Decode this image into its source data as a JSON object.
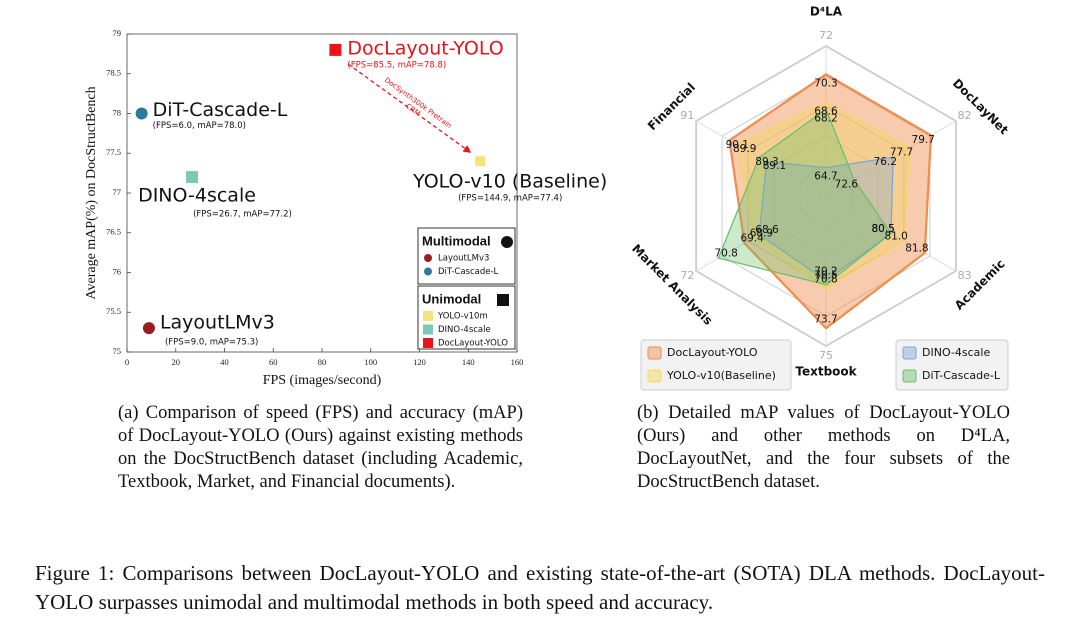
{
  "chart_data": [
    {
      "type": "scatter",
      "xlabel": "FPS (images/second)",
      "ylabel": "Average mAP(%) on DocStructBench",
      "xlim": [
        0,
        160
      ],
      "xticks": [
        0,
        20,
        40,
        60,
        80,
        100,
        120,
        140,
        160
      ],
      "ylim": [
        75,
        79
      ],
      "yticks": [
        75,
        75.5,
        76,
        76.5,
        77,
        77.5,
        78,
        78.5,
        79
      ],
      "annotation": [
        "DocSynth300k Pretrain",
        "CRM"
      ],
      "groups": [
        {
          "name": "Multimodal",
          "marker": "circle",
          "series": [
            {
              "name": "LayoutLMv3",
              "label": "LayoutLMv3",
              "note": "(FPS=9.0, mAP=75.3)",
              "color": "#9b1c1c",
              "x": [
                9.0
              ],
              "values": [
                75.3
              ]
            },
            {
              "name": "DiT-Cascade-L",
              "label": "DiT-Cascade-L",
              "note": "(FPS=6.0, mAP=78.0)",
              "color": "#2b7a9e",
              "x": [
                6.0
              ],
              "values": [
                78.0
              ]
            }
          ]
        },
        {
          "name": "Unimodal",
          "marker": "square",
          "series": [
            {
              "name": "YOLO-v10m",
              "label": "YOLO-v10 (Baseline)",
              "note": "(FPS=144.9, mAP=77.4)",
              "color": "#f6e27a",
              "x": [
                144.9
              ],
              "values": [
                77.4
              ]
            },
            {
              "name": "DINO-4scale",
              "label": "DINO-4scale",
              "note": "(FPS=26.7, mAP=77.2)",
              "color": "#7cc7b8",
              "x": [
                26.7
              ],
              "values": [
                77.2
              ]
            },
            {
              "name": "DocLayout-YOLO",
              "label": "DocLayout-YOLO",
              "note": "(FPS=85.5, mAP=78.8)",
              "color": "#e8141a",
              "x": [
                85.5
              ],
              "values": [
                78.8
              ]
            }
          ]
        }
      ]
    },
    {
      "type": "radar",
      "axes": [
        "D⁴LA",
        "DocLayNet",
        "Academic",
        "Textbook",
        "Market Analysis",
        "Financial"
      ],
      "rlim": [
        [
          63,
          72
        ],
        [
          70,
          82
        ],
        [
          78,
          83
        ],
        [
          64,
          75
        ],
        [
          65,
          72
        ],
        [
          87.5,
          91
        ]
      ],
      "series": [
        {
          "name": "DocLayout-YOLO",
          "color": "#f08c4c",
          "values": [
            70.3,
            79.7,
            81.8,
            73.7,
            69.4,
            90.1
          ],
          "value_labels": [
            "70.3",
            "79.7",
            "81.8",
            "73.7",
            "69.4",
            "90.1"
          ]
        },
        {
          "name": "YOLO-v10(Baseline)",
          "color": "#f2d85a",
          "values": [
            68.6,
            77.7,
            81.0,
            70.8,
            68.9,
            89.9
          ],
          "value_labels": [
            "68.6",
            "77.7",
            "81.0",
            "70.8",
            "68.9",
            "89.9"
          ]
        },
        {
          "name": "DINO-4scale",
          "color": "#7fa6d8",
          "values": [
            64.7,
            76.2,
            80.5,
            70.2,
            68.6,
            89.1
          ],
          "value_labels": [
            "64.7",
            "76.2",
            "80.5",
            "70.2",
            "68.6",
            "89.1"
          ]
        },
        {
          "name": "DiT-Cascade-L",
          "color": "#6cbf6e",
          "values": [
            68.2,
            72.6,
            80.5,
            70.5,
            70.8,
            89.3
          ],
          "value_labels": [
            "68.2",
            "72.6",
            "80.5",
            "70.5",
            "70.8",
            "89.3"
          ]
        }
      ]
    }
  ],
  "subcaptions": [
    "(a) Comparison of speed (FPS) and accuracy (mAP) of DocLayout-YOLO (Ours) against existing methods on the DocStructBench dataset (including Academic, Textbook, Market, and Financial documents).",
    "(b) Detailed mAP values of DocLayout-YOLO (Ours) and other methods on D⁴LA, DocLayoutNet, and the four subsets of the DocStructBench dataset."
  ],
  "caption": "Figure 1: Comparisons between DocLayout-YOLO and existing state-of-the-art (SOTA) DLA methods. DocLayout-YOLO surpasses unimodal and multimodal methods in both speed and accuracy."
}
